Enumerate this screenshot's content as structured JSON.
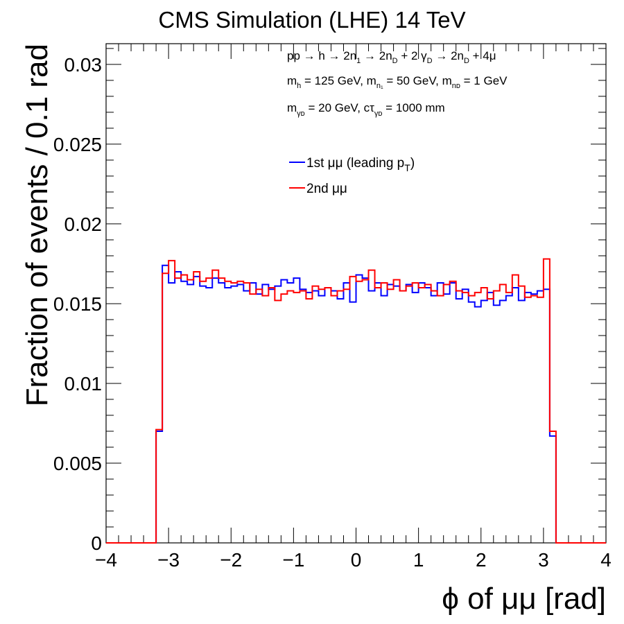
{
  "chart_data": {
    "type": "histogram-step",
    "title": "CMS Simulation (LHE) 14 TeV",
    "xlabel": "ϕ of μμ [rad]",
    "ylabel": "Fraction of events / 0.1 rad",
    "xlim": [
      -4,
      4
    ],
    "ylim": [
      0,
      0.0313
    ],
    "x_ticks": [
      -4,
      -3,
      -2,
      -1,
      0,
      1,
      2,
      3,
      4
    ],
    "x_tick_labels": [
      "−4",
      "−3",
      "−2",
      "−1",
      "0",
      "1",
      "2",
      "3",
      "4"
    ],
    "y_ticks": [
      0,
      0.005,
      0.01,
      0.015,
      0.02,
      0.025,
      0.03
    ],
    "y_tick_labels": [
      "0",
      "0.005",
      "0.01",
      "0.015",
      "0.02",
      "0.025",
      "0.03"
    ],
    "bin_width": 0.1,
    "series": [
      {
        "name": "1st μμ (leading p_T)",
        "color": "#0000ff",
        "x": [
          -3.2,
          -3.1,
          -3.0,
          -2.9,
          -2.8,
          -2.7,
          -2.6,
          -2.5,
          -2.4,
          -2.3,
          -2.2,
          -2.1,
          -2.0,
          -1.9,
          -1.8,
          -1.7,
          -1.6,
          -1.5,
          -1.4,
          -1.3,
          -1.2,
          -1.1,
          -1.0,
          -0.9,
          -0.8,
          -0.7,
          -0.6,
          -0.5,
          -0.4,
          -0.3,
          -0.2,
          -0.1,
          0.0,
          0.1,
          0.2,
          0.3,
          0.4,
          0.5,
          0.6,
          0.7,
          0.8,
          0.9,
          1.0,
          1.1,
          1.2,
          1.3,
          1.4,
          1.5,
          1.6,
          1.7,
          1.8,
          1.9,
          2.0,
          2.1,
          2.2,
          2.3,
          2.4,
          2.5,
          2.6,
          2.7,
          2.8,
          2.9,
          3.0,
          3.1
        ],
        "values": [
          0.007,
          0.0174,
          0.0163,
          0.017,
          0.0164,
          0.0162,
          0.0167,
          0.0161,
          0.016,
          0.0166,
          0.0163,
          0.016,
          0.0161,
          0.0162,
          0.0158,
          0.0163,
          0.0156,
          0.0162,
          0.0159,
          0.0161,
          0.0165,
          0.0163,
          0.0166,
          0.0159,
          0.0157,
          0.0158,
          0.0155,
          0.016,
          0.0158,
          0.0153,
          0.0163,
          0.0151,
          0.0168,
          0.0166,
          0.0158,
          0.0163,
          0.0155,
          0.0162,
          0.0161,
          0.0158,
          0.0162,
          0.0157,
          0.0163,
          0.016,
          0.0155,
          0.0163,
          0.0156,
          0.0163,
          0.0153,
          0.0159,
          0.0151,
          0.0148,
          0.0152,
          0.0157,
          0.0149,
          0.0152,
          0.0155,
          0.016,
          0.0152,
          0.0157,
          0.0156,
          0.0158,
          0.0159,
          0.0067
        ]
      },
      {
        "name": "2nd μμ",
        "color": "#ff0000",
        "x": [
          -3.2,
          -3.1,
          -3.0,
          -2.9,
          -2.8,
          -2.7,
          -2.6,
          -2.5,
          -2.4,
          -2.3,
          -2.2,
          -2.1,
          -2.0,
          -1.9,
          -1.8,
          -1.7,
          -1.6,
          -1.5,
          -1.4,
          -1.3,
          -1.2,
          -1.1,
          -1.0,
          -0.9,
          -0.8,
          -0.7,
          -0.6,
          -0.5,
          -0.4,
          -0.3,
          -0.2,
          -0.1,
          0.0,
          0.1,
          0.2,
          0.3,
          0.4,
          0.5,
          0.6,
          0.7,
          0.8,
          0.9,
          1.0,
          1.1,
          1.2,
          1.3,
          1.4,
          1.5,
          1.6,
          1.7,
          1.8,
          1.9,
          2.0,
          2.1,
          2.2,
          2.3,
          2.4,
          2.5,
          2.6,
          2.7,
          2.8,
          2.9,
          3.0,
          3.1
        ],
        "values": [
          0.0071,
          0.0169,
          0.0177,
          0.0166,
          0.0168,
          0.0165,
          0.017,
          0.0164,
          0.0166,
          0.0171,
          0.0166,
          0.0164,
          0.0163,
          0.0164,
          0.0163,
          0.0156,
          0.0159,
          0.0155,
          0.016,
          0.0152,
          0.0156,
          0.0158,
          0.0157,
          0.0158,
          0.0153,
          0.0161,
          0.0159,
          0.016,
          0.0155,
          0.0158,
          0.0159,
          0.0167,
          0.0164,
          0.0165,
          0.0171,
          0.016,
          0.0163,
          0.0159,
          0.0165,
          0.0158,
          0.0161,
          0.0163,
          0.016,
          0.0162,
          0.0158,
          0.0155,
          0.0162,
          0.0164,
          0.0158,
          0.0157,
          0.0155,
          0.0157,
          0.016,
          0.0153,
          0.0158,
          0.0162,
          0.0157,
          0.0168,
          0.0161,
          0.0154,
          0.0155,
          0.0154,
          0.0178,
          0.007
        ]
      }
    ],
    "legend": {
      "placement": "upper-center",
      "entries": [
        {
          "label": "1st μμ (leading p",
          "sub": "T",
          "close": ")",
          "color": "#0000ff"
        },
        {
          "label": "2nd μμ",
          "sub": "",
          "close": "",
          "color": "#ff0000"
        }
      ]
    },
    "annotations": {
      "line1": {
        "a": "pp → h → 2n",
        "a_sub": "1",
        "b": " → 2n",
        "b_sub": "D",
        "c": " + 2 γ",
        "c_sub": "D",
        "d": " → 2n",
        "d_sub": "D",
        "e": " + 4μ"
      },
      "line2": {
        "a": "m",
        "a_sub": "h",
        "b": " = 125 GeV, m",
        "b_sub": "n₁",
        "c": " = 50 GeV, m",
        "c_sub": "nᴅ",
        "d": " = 1 GeV"
      },
      "line3": {
        "a": "m",
        "a_sub": "γᴅ",
        "b": " = 20 GeV, cτ",
        "b_sub": "γᴅ",
        "c": " = 1000 mm"
      }
    },
    "grid": false
  }
}
